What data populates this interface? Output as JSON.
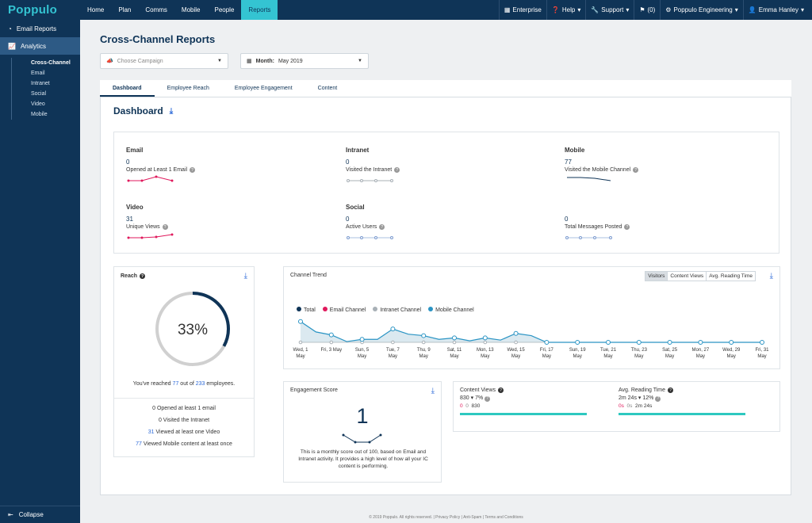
{
  "brand": {
    "name": "Poppulo"
  },
  "nav": {
    "items": [
      "Home",
      "Plan",
      "Comms",
      "Mobile",
      "People",
      "Reports"
    ]
  },
  "right_nav": {
    "enterprise": "Enterprise",
    "help": "Help",
    "support": "Support",
    "notifications": "(0)",
    "org": "Poppulo Engineering",
    "user": "Emma Hanley"
  },
  "sidebar": {
    "email_reports": "Email Reports",
    "analytics": "Analytics",
    "sub": [
      "Cross-Channel",
      "Email",
      "Intranet",
      "Social",
      "Video",
      "Mobile"
    ],
    "collapse": "Collapse"
  },
  "page": {
    "title": "Cross-Channel Reports",
    "campaign_placeholder": "Choose Campaign",
    "month_label": "Month:",
    "month_value": "May 2019"
  },
  "tabs": [
    "Dashboard",
    "Employee Reach",
    "Employee Engagement",
    "Content"
  ],
  "dashboard": {
    "title": "Dashboard"
  },
  "metrics": {
    "email": {
      "heading": "Email",
      "value": "0",
      "label": "Opened at Least 1 Email"
    },
    "intranet": {
      "heading": "Intranet",
      "value": "0",
      "label": "Visited the Intranet"
    },
    "mobile": {
      "heading": "Mobile",
      "value": "77",
      "label": "Visited the Mobile Channel"
    },
    "video": {
      "heading": "Video",
      "value": "31",
      "label": "Unique Views"
    },
    "social": {
      "heading": "Social",
      "value": "0",
      "label": "Active Users"
    },
    "messages": {
      "value": "0",
      "label": "Total Messages Posted"
    }
  },
  "reach": {
    "title": "Reach",
    "percent": "33%",
    "percent_value": 0.33,
    "summary_pre": "You've reached",
    "reached": "77",
    "summary_mid": "out of",
    "total": "233",
    "summary_post": "employees.",
    "list": [
      {
        "n": "0",
        "t": "Opened at least 1 email"
      },
      {
        "n": "0",
        "t": "Visited the Intranet"
      },
      {
        "n": "31",
        "t": "Viewed at least one Video"
      },
      {
        "n": "77",
        "t": "Viewed Mobile content at least once"
      }
    ]
  },
  "trend": {
    "title": "Channel Trend",
    "buttons": [
      "Visitors",
      "Content Views",
      "Avg. Reading Time"
    ],
    "legend": [
      {
        "name": "Total",
        "color": "#0f3457"
      },
      {
        "name": "Email Channel",
        "color": "#e0195c"
      },
      {
        "name": "Intranet Channel",
        "color": "#a8b0b6"
      },
      {
        "name": "Mobile Channel",
        "color": "#2a94c4"
      }
    ]
  },
  "chart_data": {
    "type": "line",
    "x": [
      "Wed, 1 May",
      "Thu, 2 May",
      "Fri, 3 May",
      "Sat, 4 May",
      "Sun, 5 May",
      "Mon, 6 May",
      "Tue, 7 May",
      "Wed, 8 May",
      "Thu, 9 May",
      "Fri, 10 May",
      "Sat, 11 May",
      "Sun, 12 May",
      "Mon, 13 May",
      "Tue, 14 May",
      "Wed, 15 May",
      "Thu, 16 May",
      "Fri, 17 May",
      "Sat, 18 May",
      "Sun, 19 May",
      "Mon, 20 May",
      "Tue, 21 May",
      "Wed, 22 May",
      "Thu, 23 May",
      "Fri, 24 May",
      "Sat, 25 May",
      "Sun, 26 May",
      "Mon, 27 May",
      "Tue, 28 May",
      "Wed, 29 May",
      "Thu, 30 May",
      "Fri, 31 May"
    ],
    "tick_labels": [
      "Wed, 1|May",
      "Fri, 3 May",
      "Sun, 5|May",
      "Tue, 7|May",
      "Thu, 9|May",
      "Sat, 11|May",
      "Mon, 13|May",
      "Wed, 15|May",
      "Fri, 17|May",
      "Sun, 19|May",
      "Tue, 21|May",
      "Thu, 23|May",
      "Sat, 25|May",
      "Mon, 27|May",
      "Wed, 29|May",
      "Fri, 31|May"
    ],
    "series": [
      {
        "name": "Total",
        "values": [
          28,
          14,
          10,
          1,
          4,
          4,
          18,
          11,
          9,
          4,
          6,
          2,
          6,
          3,
          12,
          9,
          0,
          0,
          0,
          0,
          0,
          0,
          0,
          0,
          0,
          0,
          0,
          0,
          0,
          0,
          0
        ]
      },
      {
        "name": "Intranet Channel",
        "values": [
          0,
          0,
          0,
          0,
          0,
          0,
          0,
          0,
          0,
          0,
          0,
          0,
          0,
          0,
          0,
          0,
          0,
          0,
          0,
          0,
          0,
          0,
          0,
          0,
          0,
          0,
          0,
          0,
          0,
          0,
          0
        ]
      }
    ],
    "ylim": [
      0,
      32
    ]
  },
  "engagement": {
    "title": "Engagement Score",
    "score": "1",
    "desc": "This is a monthly score out of 100, based on Email and Intranet activity. It provides a high level of how all your IC content is performing."
  },
  "content_views": {
    "title": "Content Views",
    "value": "830",
    "change": "7%",
    "d1": "0",
    "d2": "0",
    "d3": "830",
    "bar": 1
  },
  "reading_time": {
    "title": "Avg. Reading Time",
    "value": "2m 24s",
    "change": "12%",
    "d1": "0s",
    "d2": "0s",
    "d3": "2m 24s",
    "bar": 1
  },
  "footer": {
    "text": "© 2019 Poppulo. All rights reserved. | Privacy Policy | Anti-Spam | Terms and Conditions"
  }
}
